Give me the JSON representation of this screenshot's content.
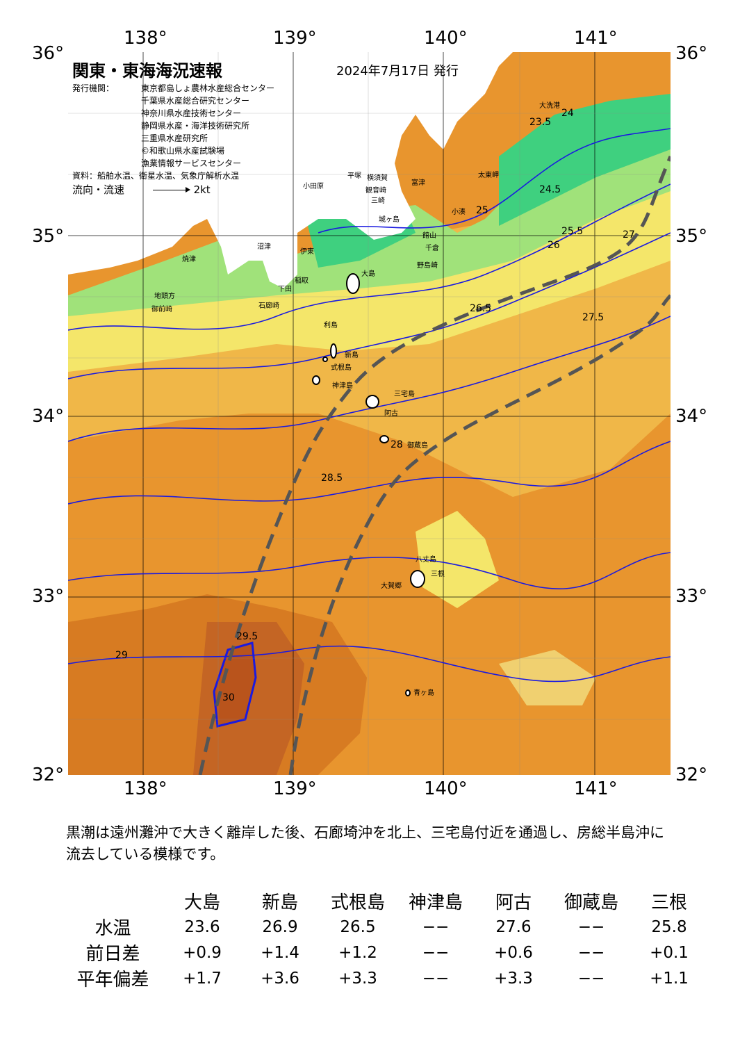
{
  "map": {
    "title": "関東・東海海況速報",
    "issue_date": "2024年7月17日 発行",
    "issuer_label": "発行機関：",
    "issuers": [
      "東京都島しょ農林水産総合センター",
      "千葉県水産総合研究センター",
      "神奈川県水産技術センター",
      "静岡県水産・海洋技術研究所",
      "三重県水産研究所",
      "©和歌山県水産試験場",
      "漁業情報サービスセンター"
    ],
    "source": "資料：船舶水温、衛星水温、気象庁解析水温",
    "flow_legend": "流向・流速",
    "flow_scale": "2kt",
    "lon_labels": [
      "138°",
      "139°",
      "140°",
      "141°"
    ],
    "lat_labels": [
      "36°",
      "35°",
      "34°",
      "33°",
      "32°"
    ],
    "place_names": [
      "大洗港",
      "太東岬",
      "小湊",
      "野島崎",
      "千倉",
      "館山",
      "富津",
      "観音崎",
      "城ヶ島",
      "三崎",
      "横須賀",
      "平塚",
      "小田原",
      "伊東",
      "稲取",
      "下田",
      "石廊崎",
      "沼津",
      "焼津",
      "御前崎",
      "地頭方",
      "大島",
      "利島",
      "新島",
      "式根島",
      "神津島",
      "三宅島",
      "阿古",
      "御蔵島",
      "八丈島",
      "三根",
      "大賀郷",
      "青ヶ島"
    ],
    "contour_labels": [
      "23.5",
      "24",
      "24.5",
      "25",
      "25.5",
      "26",
      "26.5",
      "27",
      "27.5",
      "28",
      "28.5",
      "29",
      "29.5",
      "30"
    ],
    "colors": {
      "sea_cold": "#3fd07f",
      "sea_cool": "#a0e27a",
      "sea_mid": "#f4e66a",
      "sea_warm": "#f0b748",
      "sea_hot": "#e8952e",
      "sea_hotter": "#d77b22",
      "sea_hottest": "#b9541c",
      "land": "#ffffff",
      "kuroshio_axis": "#555555",
      "contour": "#1a1ae0"
    }
  },
  "summary": "黒潮は遠州灘沖で大きく離岸した後、石廊埼沖を北上、三宅島付近を通過し、房総半島沖に流去している模様です。",
  "stats": {
    "stations": [
      "大島",
      "新島",
      "式根島",
      "神津島",
      "阿古",
      "御蔵島",
      "三根"
    ],
    "rows": [
      {
        "label": "水温",
        "values": [
          "23.6",
          "26.9",
          "26.5",
          "−−",
          "27.6",
          "−−",
          "25.8"
        ]
      },
      {
        "label": "前日差",
        "values": [
          "+0.9",
          "+1.4",
          "+1.2",
          "−−",
          "+0.6",
          "−−",
          "+0.1"
        ]
      },
      {
        "label": "平年偏差",
        "values": [
          "+1.7",
          "+3.6",
          "+3.3",
          "−−",
          "+3.3",
          "−−",
          "+1.1"
        ]
      }
    ]
  }
}
